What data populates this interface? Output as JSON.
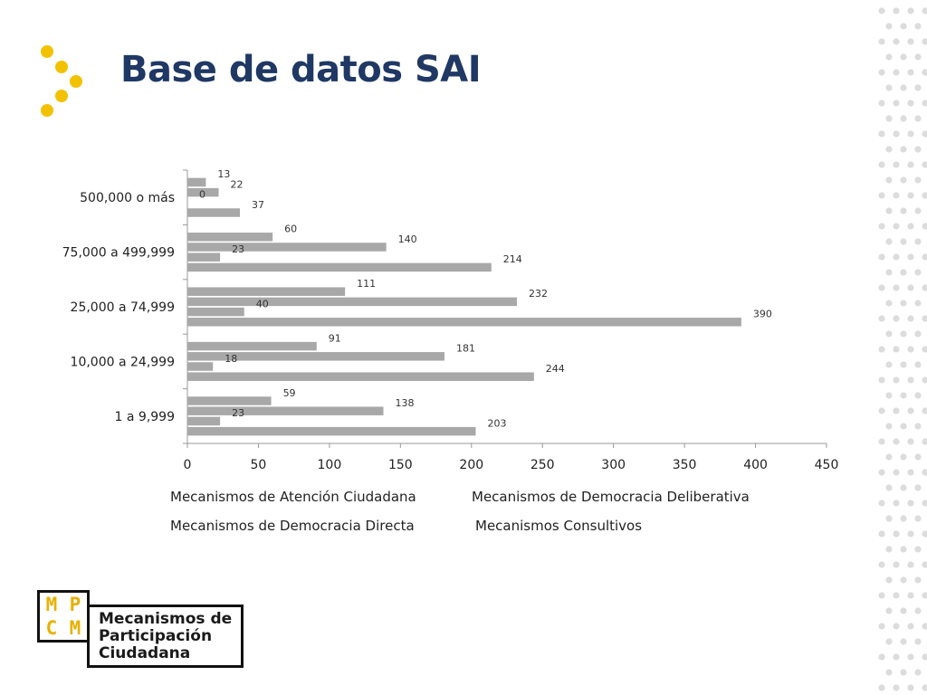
{
  "slide": {
    "title": "Base de datos SAI"
  },
  "legend": {
    "items": [
      "Mecanismos de Atención Ciudadana",
      "Mecanismos de Democracia Deliberativa",
      "Mecanismos de Democracia Directa",
      "Mecanismos Consultivos"
    ]
  },
  "logo": {
    "letters": [
      "M",
      "P",
      "C",
      "M"
    ],
    "lines": [
      "Mecanismos de",
      "Participación",
      "Ciudadana"
    ]
  },
  "colors": {
    "title": "#1f3864",
    "accent_dots": "#f2c200",
    "deco_dots": "#dcdcdc",
    "bars": "#a8a8a8",
    "axis": "#999999"
  },
  "chart_data": {
    "type": "bar",
    "orientation": "horizontal",
    "categories": [
      "500,000 o más",
      "75,000 a 499,999",
      "25,000 a 74,999",
      "10,000 a 24,999",
      "1 a 9,999"
    ],
    "series": [
      {
        "name": "Mecanismos de Atención Ciudadana",
        "values": [
          13,
          60,
          111,
          91,
          59
        ]
      },
      {
        "name": "Mecanismos de Democracia Deliberativa",
        "values": [
          22,
          140,
          232,
          181,
          138
        ]
      },
      {
        "name": "Mecanismos de Democracia Directa",
        "values": [
          0,
          23,
          40,
          18,
          23
        ]
      },
      {
        "name": "Mecanismos Consultivos",
        "values": [
          37,
          214,
          390,
          244,
          203
        ]
      }
    ],
    "xlim": [
      0,
      450
    ],
    "xticks": [
      0,
      50,
      100,
      150,
      200,
      250,
      300,
      350,
      400,
      450
    ],
    "grid": false,
    "legend_position": "bottom"
  }
}
